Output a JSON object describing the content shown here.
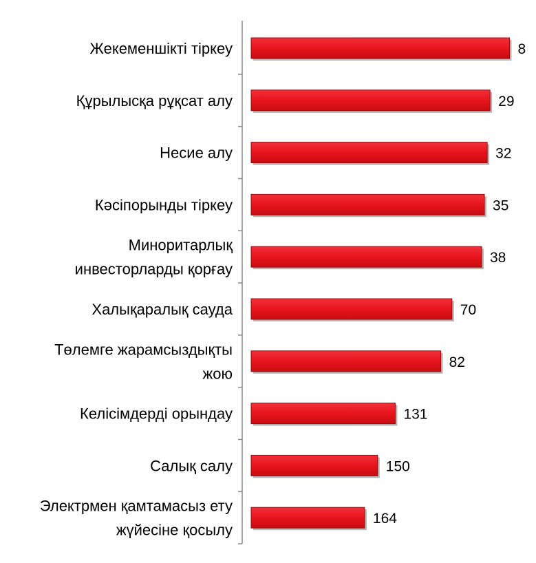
{
  "chart_data": {
    "type": "bar",
    "orientation": "horizontal",
    "categories": [
      [
        "Жекеменшікті тіркеу"
      ],
      [
        "Құрылысқа рұқсат алу"
      ],
      [
        "Несие алу"
      ],
      [
        "Кәсіпорынды тіркеу"
      ],
      [
        "Миноритарлық",
        "инвесторларды қорғау"
      ],
      [
        "Халықаралық сауда"
      ],
      [
        "Төлемге жарамсыздықты",
        "жою"
      ],
      [
        "Келісімдерді орындау"
      ],
      [
        "Салық салу"
      ],
      [
        "Электрмен қамтамасыз ету",
        "жүйесіне қосылу"
      ]
    ],
    "values": [
      8,
      29,
      32,
      35,
      38,
      70,
      82,
      131,
      150,
      164
    ],
    "bar_color": "#e8141c",
    "bar_shadow_color": "#7a7a7a",
    "axis_color": "#888888",
    "grid": false,
    "legend": "none",
    "xlabel": "",
    "ylabel": ""
  }
}
